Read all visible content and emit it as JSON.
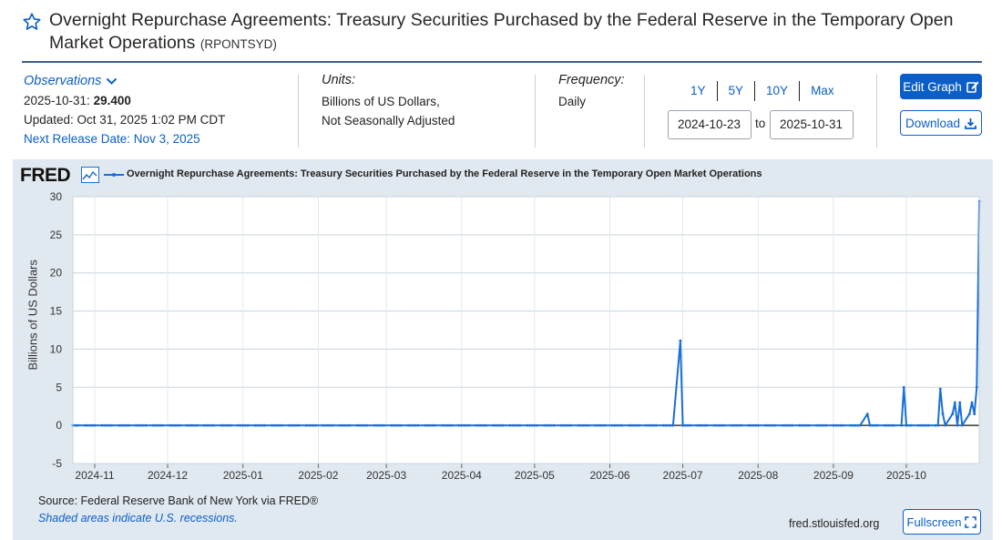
{
  "header": {
    "title": "Overnight Repurchase Agreements: Treasury Securities Purchased by the Federal Reserve in the Temporary Open Market Operations",
    "series_id": "(RPONTSYD)"
  },
  "observations": {
    "label": "Observations",
    "date": "2025-10-31:",
    "value": "29.400",
    "updated": "Updated: Oct 31, 2025 1:02 PM CDT",
    "next_release": "Next Release Date: Nov 3, 2025"
  },
  "units": {
    "label": "Units:",
    "line1": "Billions of US Dollars,",
    "line2": "Not Seasonally Adjusted"
  },
  "frequency": {
    "label": "Frequency:",
    "value": "Daily"
  },
  "range": {
    "buttons": [
      "1Y",
      "5Y",
      "10Y",
      "Max"
    ],
    "start": "2024-10-23",
    "to": "to",
    "end": "2025-10-31"
  },
  "actions": {
    "edit": "Edit Graph",
    "download": "Download",
    "fullscreen": "Fullscreen"
  },
  "graph": {
    "logo": "FRED",
    "source": "Source: Federal Reserve Bank of New York via FRED®",
    "note": "Shaded areas indicate U.S. recessions.",
    "url": "fred.stlouisfed.org",
    "line_color": "#1a6fd8"
  },
  "chart_data": {
    "type": "line",
    "title": "Overnight Repurchase Agreements: Treasury Securities Purchased by the Federal Reserve in the Temporary Open Market Operations",
    "xlabel": "",
    "ylabel": "Billions of US Dollars",
    "ylim": [
      -5,
      30
    ],
    "yticks": [
      -5,
      0,
      5,
      10,
      15,
      20,
      25,
      30
    ],
    "x_start": "2024-10-23",
    "x_end": "2025-10-31",
    "xticks": [
      "2024-11",
      "2024-12",
      "2025-01",
      "2025-02",
      "2025-03",
      "2025-04",
      "2025-05",
      "2025-06",
      "2025-07",
      "2025-08",
      "2025-09",
      "2025-10"
    ],
    "grid": true,
    "baseline_value": 0,
    "nonzero_points": [
      {
        "date": "2025-06-27",
        "value": 0
      },
      {
        "date": "2025-06-30",
        "value": 11.1
      },
      {
        "date": "2025-07-01",
        "value": 0
      },
      {
        "date": "2025-09-12",
        "value": 0
      },
      {
        "date": "2025-09-15",
        "value": 1.5
      },
      {
        "date": "2025-09-16",
        "value": 0
      },
      {
        "date": "2025-09-29",
        "value": 0
      },
      {
        "date": "2025-09-30",
        "value": 5.0
      },
      {
        "date": "2025-10-01",
        "value": 0
      },
      {
        "date": "2025-10-14",
        "value": 0
      },
      {
        "date": "2025-10-15",
        "value": 4.8
      },
      {
        "date": "2025-10-16",
        "value": 1.5
      },
      {
        "date": "2025-10-17",
        "value": 0
      },
      {
        "date": "2025-10-20",
        "value": 1.5
      },
      {
        "date": "2025-10-21",
        "value": 3.0
      },
      {
        "date": "2025-10-22",
        "value": 0
      },
      {
        "date": "2025-10-23",
        "value": 3.0
      },
      {
        "date": "2025-10-24",
        "value": 0
      },
      {
        "date": "2025-10-27",
        "value": 1.5
      },
      {
        "date": "2025-10-28",
        "value": 3.0
      },
      {
        "date": "2025-10-29",
        "value": 1.5
      },
      {
        "date": "2025-10-30",
        "value": 5.0
      },
      {
        "date": "2025-10-31",
        "value": 29.4
      }
    ]
  }
}
